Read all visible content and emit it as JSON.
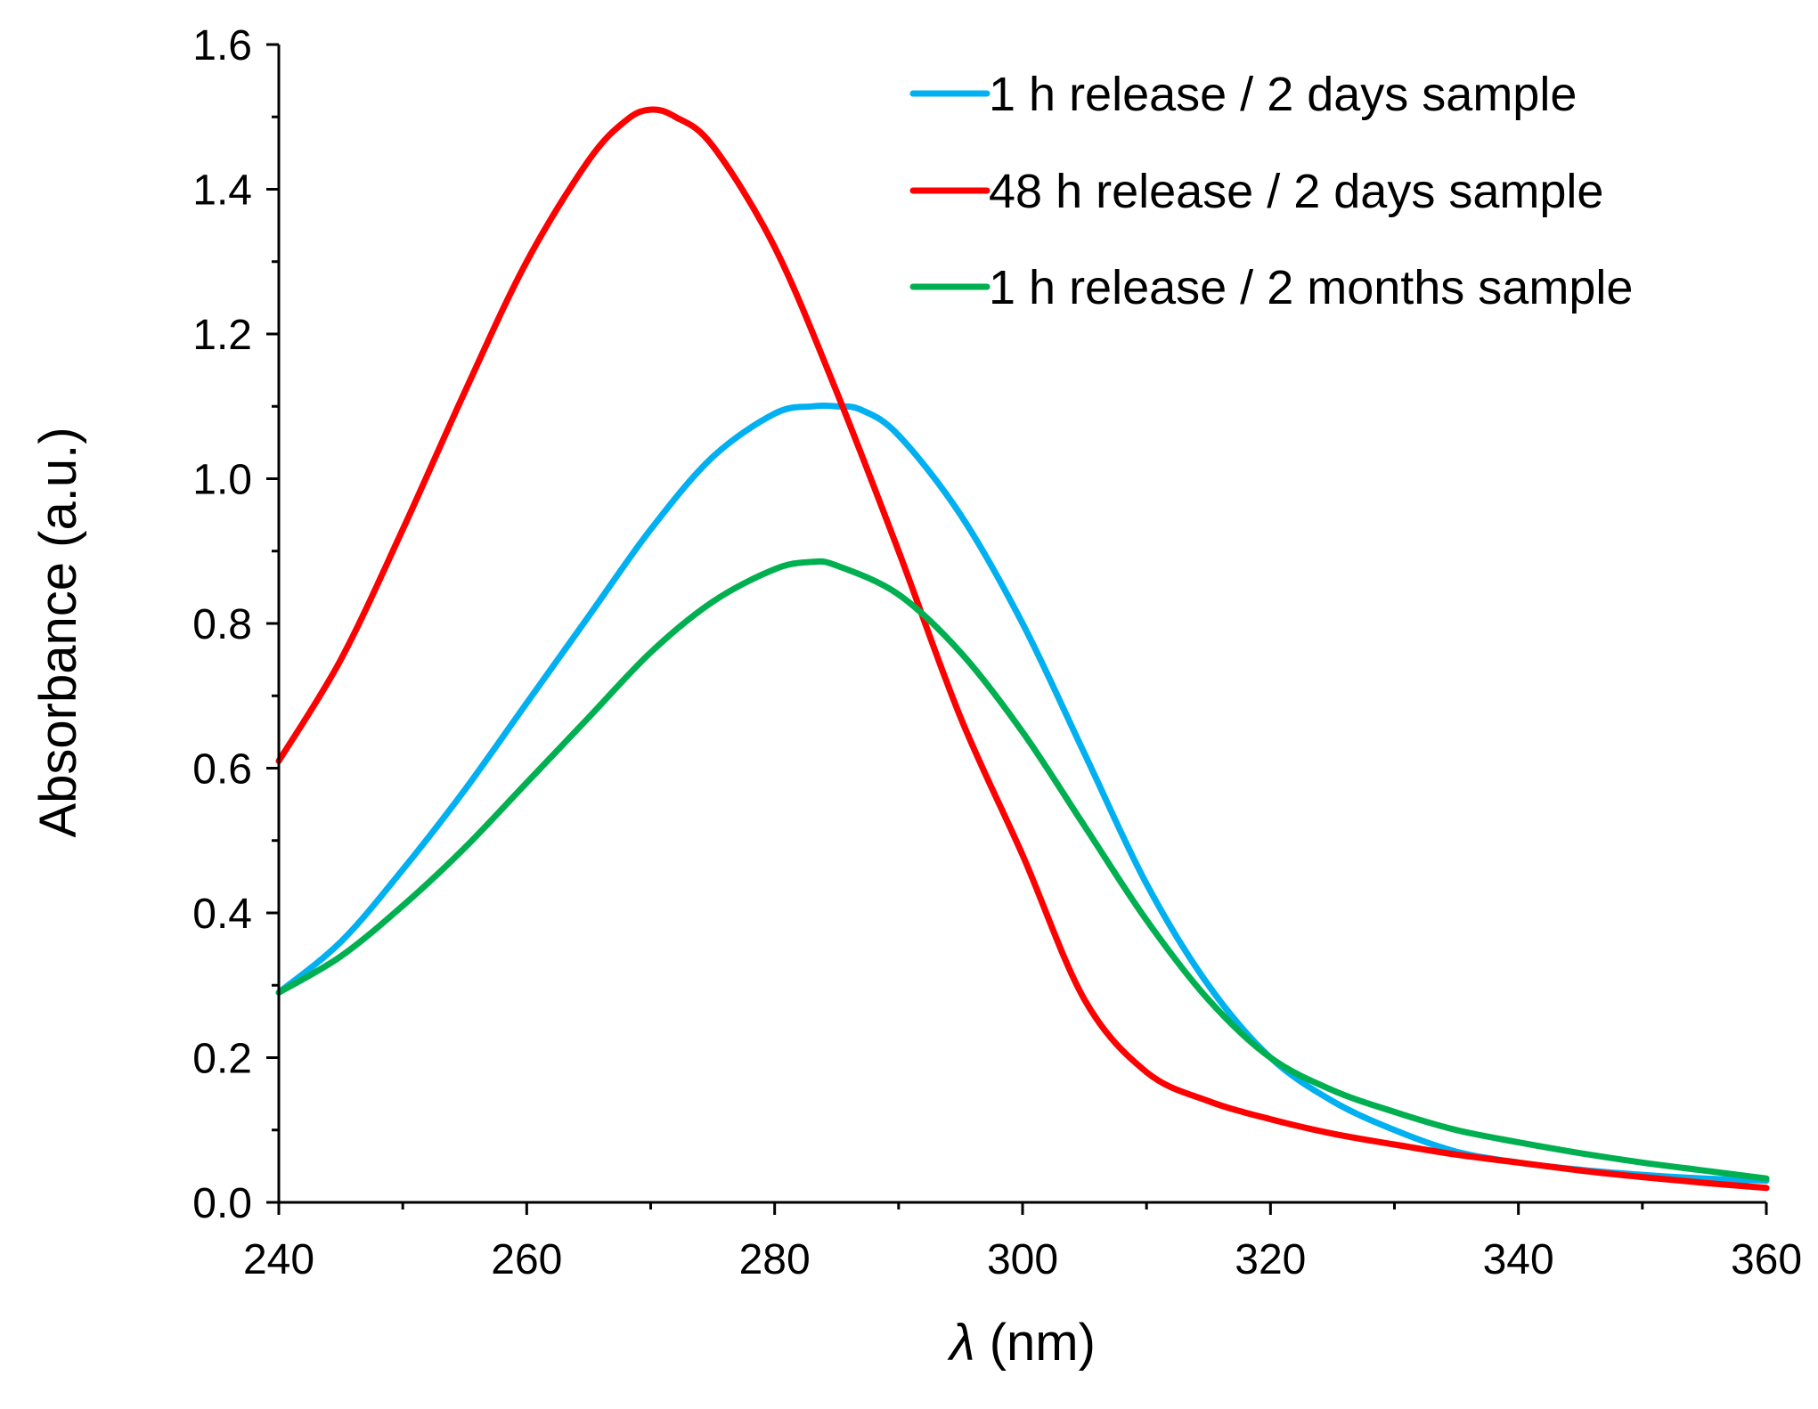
{
  "chart_data": {
    "type": "line",
    "title": "",
    "xlabel_symbol": "λ",
    "xlabel_unit": " (nm)",
    "ylabel": "Absorbance (a.u.)",
    "xlim": [
      240,
      360
    ],
    "ylim": [
      0.0,
      1.6
    ],
    "x_ticks": [
      240,
      260,
      280,
      300,
      320,
      340,
      360
    ],
    "x_tick_labels": [
      "240",
      "260",
      "280",
      "300",
      "320",
      "340",
      "360"
    ],
    "y_ticks": [
      0.0,
      0.2,
      0.4,
      0.6,
      0.8,
      1.0,
      1.2,
      1.4,
      1.6
    ],
    "y_tick_labels": [
      "0.0",
      "0.2",
      "0.4",
      "0.6",
      "0.8",
      "1.0",
      "1.2",
      "1.4",
      "1.6"
    ],
    "x_minor_step": 10,
    "y_minor_step": 0.1,
    "grid": false,
    "legend_position": "top-right",
    "series": [
      {
        "name": "1 h release / 2 days sample",
        "color": "#00B0F0",
        "x": [
          240,
          245,
          250,
          255,
          260,
          265,
          270,
          275,
          280,
          283,
          285,
          287,
          290,
          295,
          300,
          305,
          310,
          315,
          320,
          325,
          330,
          335,
          340,
          345,
          350,
          355,
          360
        ],
        "y": [
          0.29,
          0.36,
          0.46,
          0.57,
          0.69,
          0.81,
          0.93,
          1.03,
          1.09,
          1.1,
          1.1,
          1.095,
          1.06,
          0.95,
          0.8,
          0.62,
          0.44,
          0.3,
          0.2,
          0.14,
          0.1,
          0.07,
          0.055,
          0.045,
          0.038,
          0.033,
          0.03
        ]
      },
      {
        "name": "48 h release / 2 days sample",
        "color": "#FF0000",
        "x": [
          240,
          245,
          250,
          255,
          260,
          265,
          268,
          270,
          272,
          275,
          280,
          285,
          290,
          295,
          300,
          305,
          310,
          315,
          320,
          325,
          330,
          335,
          340,
          345,
          350,
          355,
          360
        ],
        "y": [
          0.61,
          0.75,
          0.93,
          1.12,
          1.3,
          1.44,
          1.495,
          1.51,
          1.5,
          1.46,
          1.32,
          1.12,
          0.9,
          0.67,
          0.48,
          0.28,
          0.18,
          0.14,
          0.115,
          0.095,
          0.08,
          0.066,
          0.055,
          0.044,
          0.035,
          0.027,
          0.02
        ]
      },
      {
        "name": "1 h release / 2 months sample",
        "color": "#00B050",
        "x": [
          240,
          245,
          250,
          255,
          260,
          265,
          270,
          275,
          280,
          283,
          285,
          290,
          295,
          300,
          305,
          310,
          315,
          320,
          325,
          330,
          335,
          340,
          345,
          350,
          355,
          360
        ],
        "y": [
          0.29,
          0.34,
          0.41,
          0.49,
          0.58,
          0.67,
          0.76,
          0.83,
          0.875,
          0.885,
          0.88,
          0.84,
          0.76,
          0.65,
          0.52,
          0.39,
          0.28,
          0.2,
          0.155,
          0.125,
          0.1,
          0.083,
          0.068,
          0.055,
          0.044,
          0.033
        ]
      }
    ]
  }
}
